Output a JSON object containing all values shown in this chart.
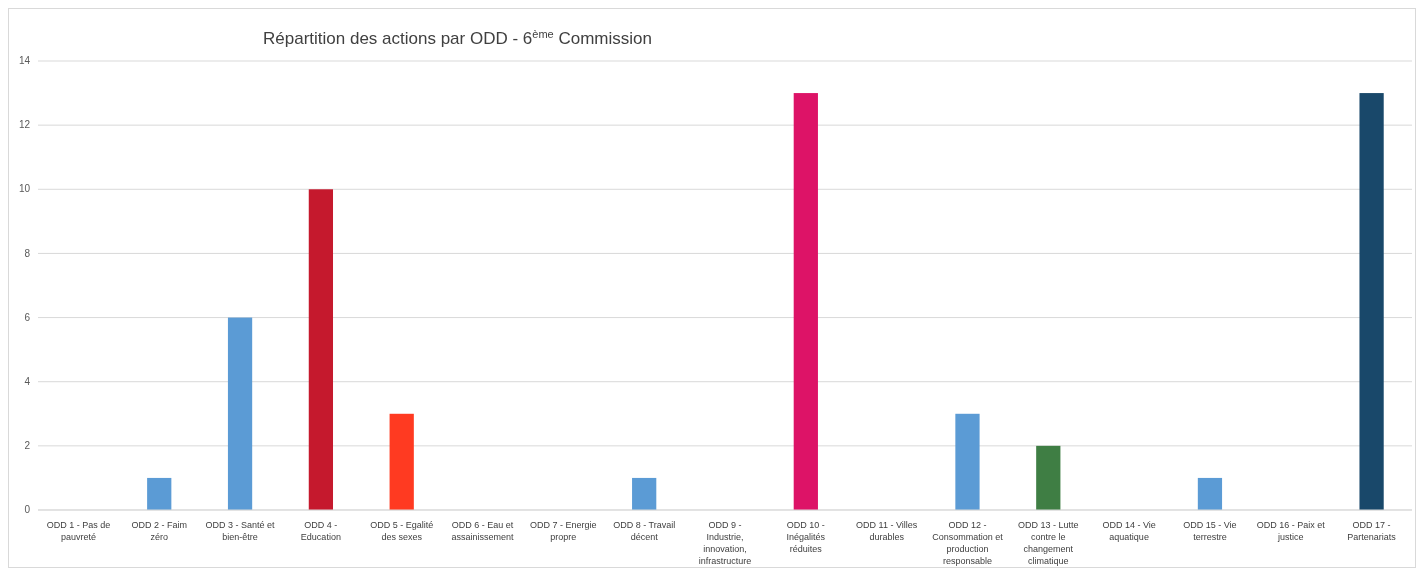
{
  "chart_data": {
    "type": "bar",
    "title": "Répartition des actions par ODD - 6$^{ème}$ Commission",
    "categories": [
      "ODD 1 - Pas de pauvreté",
      "ODD 2 - Faim zéro",
      "ODD 3 - Santé et bien-être",
      "ODD 4 - Education",
      "ODD 5 - Egalité des sexes",
      "ODD 6 - Eau et assainissement",
      "ODD 7 - Energie propre",
      "ODD 8 - Travail décent",
      "ODD 9 - Industrie, innovation, infrastructure",
      "ODD 10 - Inégalités réduites",
      "ODD 11 - Villes durables",
      "ODD 12 - Consommation et production responsable",
      "ODD 13 - Lutte contre le changement climatique",
      "ODD 14 - Vie aquatique",
      "ODD 15 - Vie terrestre",
      "ODD 16 - Paix et justice",
      "ODD 17 - Partenariats"
    ],
    "values": [
      0,
      1,
      6,
      10,
      3,
      0,
      0,
      1,
      0,
      13,
      0,
      3,
      2,
      0,
      1,
      0,
      13
    ],
    "colors": [
      "#5b9bd5",
      "#5b9bd5",
      "#5b9bd5",
      "#c5192d",
      "#ff3a21",
      "#5b9bd5",
      "#5b9bd5",
      "#5b9bd5",
      "#5b9bd5",
      "#dd1367",
      "#5b9bd5",
      "#5b9bd5",
      "#3f7e44",
      "#5b9bd5",
      "#5b9bd5",
      "#5b9bd5",
      "#19486a"
    ],
    "ylim": [
      0,
      14
    ],
    "yticks": [
      0,
      2,
      4,
      6,
      8,
      10,
      12,
      14
    ],
    "grid": "y"
  }
}
